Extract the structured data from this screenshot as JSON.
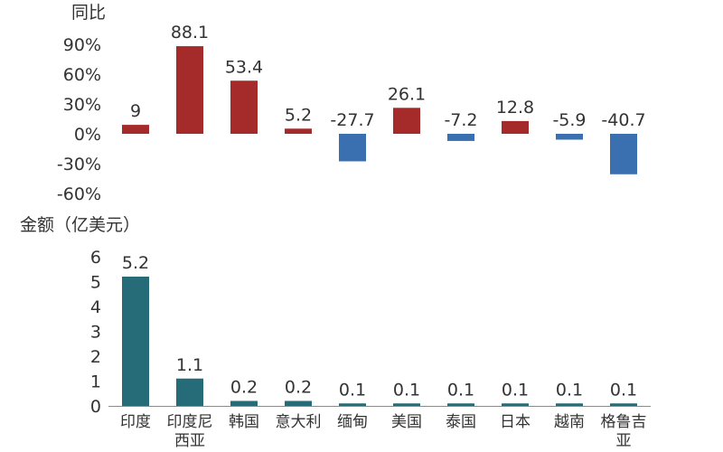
{
  "chart_data": [
    {
      "type": "bar",
      "name": "yoy-growth",
      "ytitle": "同比",
      "ylim": [
        -60,
        90
      ],
      "yticks": [
        90,
        60,
        30,
        0,
        -30,
        -60
      ],
      "ytick_labels": [
        "90%",
        "60%",
        "30%",
        "0%",
        "-30%",
        "-60%"
      ],
      "categories": [
        "印度",
        "印度尼西亚",
        "韩国",
        "意大利",
        "缅甸",
        "美国",
        "泰国",
        "日本",
        "越南",
        "格鲁吉亚"
      ],
      "values": [
        9,
        88.1,
        53.4,
        5.2,
        -27.7,
        26.1,
        -7.2,
        12.8,
        -5.9,
        -40.7
      ],
      "value_labels": [
        "9",
        "88.1",
        "53.4",
        "5.2",
        "-27.7",
        "26.1",
        "-7.2",
        "12.8",
        "-5.9",
        "-40.7"
      ],
      "positive_color": "#a52a2a",
      "negative_color": "#3a6fb0"
    },
    {
      "type": "bar",
      "name": "amount",
      "ytitle": "金额（亿美元）",
      "ylim": [
        0,
        6
      ],
      "yticks": [
        6,
        5,
        4,
        3,
        2,
        1,
        0
      ],
      "ytick_labels": [
        "6",
        "5",
        "4",
        "3",
        "2",
        "1",
        "0"
      ],
      "categories": [
        "印度",
        "印度尼西亚",
        "韩国",
        "意大利",
        "缅甸",
        "美国",
        "泰国",
        "日本",
        "越南",
        "格鲁吉亚"
      ],
      "category_labels": [
        [
          "印度"
        ],
        [
          "印度尼",
          "西亚"
        ],
        [
          "韩国"
        ],
        [
          "意大利"
        ],
        [
          "缅甸"
        ],
        [
          "美国"
        ],
        [
          "泰国"
        ],
        [
          "日本"
        ],
        [
          "越南"
        ],
        [
          "格鲁吉",
          "亚"
        ]
      ],
      "values": [
        5.2,
        1.1,
        0.2,
        0.2,
        0.1,
        0.1,
        0.1,
        0.1,
        0.1,
        0.1
      ],
      "value_labels": [
        "5.2",
        "1.1",
        "0.2",
        "0.2",
        "0.1",
        "0.1",
        "0.1",
        "0.1",
        "0.1",
        "0.1"
      ],
      "color": "#256b78"
    }
  ]
}
